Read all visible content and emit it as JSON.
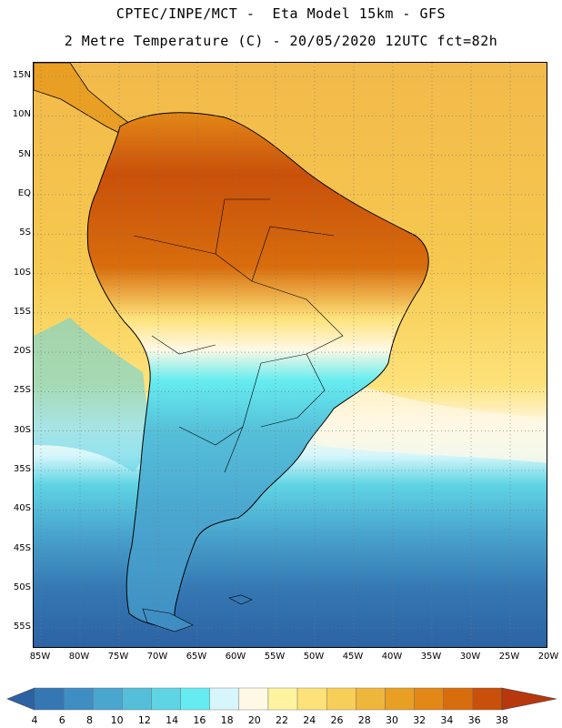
{
  "header": {
    "line1": "CPTEC/INPE/MCT -  Eta Model 15km - GFS",
    "line2": "2 Metre Temperature (C) - 20/05/2020 12UTC fct=82h"
  },
  "map": {
    "lat_labels": [
      "15N",
      "10N",
      "5N",
      "EQ",
      "5S",
      "10S",
      "15S",
      "20S",
      "25S",
      "30S",
      "35S",
      "40S",
      "45S",
      "50S",
      "55S"
    ],
    "lon_labels": [
      "85W",
      "80W",
      "75W",
      "70W",
      "65W",
      "60W",
      "55W",
      "50W",
      "45W",
      "40W",
      "35W",
      "30W",
      "25W",
      "20W"
    ]
  },
  "colorbar": {
    "labels": [
      "4",
      "6",
      "8",
      "10",
      "12",
      "14",
      "16",
      "18",
      "20",
      "22",
      "24",
      "26",
      "28",
      "30",
      "32",
      "34",
      "36",
      "38"
    ],
    "colors": [
      "#2c62a3",
      "#3477b3",
      "#3f8ec3",
      "#4aa6cf",
      "#55bfd9",
      "#5fd4e4",
      "#66ecf0",
      "#d6f6fb",
      "#fff8e5",
      "#fff3a0",
      "#fde27a",
      "#f7cf58",
      "#efb63c",
      "#e89f23",
      "#e38716",
      "#d86d0d",
      "#c9500a",
      "#b6380c"
    ]
  },
  "style": {
    "ocean_warm": "#f6c94f",
    "ocean_mid": "#fde27a",
    "ocean_cool": "#5fd4e4",
    "ocean_cold": "#2c62a3",
    "land_hot": "#c9500a",
    "land_cold": "#4aa6cf",
    "border_color": "#000000"
  }
}
